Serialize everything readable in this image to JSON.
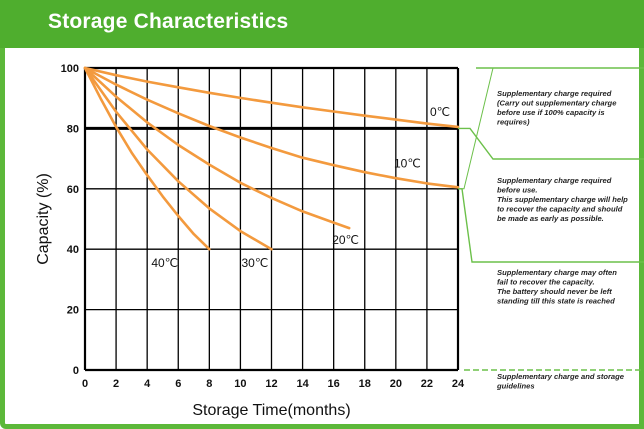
{
  "header": {
    "title": "Storage Characteristics"
  },
  "colors": {
    "header_bg": "#4fae2e",
    "curve": "#f39a3e",
    "note_line": "#6cc04a",
    "grid": "#000000"
  },
  "chart_data": {
    "type": "line",
    "title": "Storage Characteristics",
    "xlabel": "Storage Time(months)",
    "ylabel": "Capacity  (%)",
    "xlim": [
      0,
      24
    ],
    "ylim": [
      0,
      100
    ],
    "xticks": [
      "0",
      "2",
      "4",
      "6",
      "8",
      "10",
      "12",
      "14",
      "16",
      "18",
      "20",
      "22",
      "24"
    ],
    "yticks": [
      "0",
      "20",
      "40",
      "60",
      "80",
      "100"
    ],
    "grid": true,
    "series": [
      {
        "name": "0℃",
        "x": [
          0,
          2,
          4,
          6,
          8,
          10,
          12,
          14,
          16,
          18,
          20,
          22,
          24
        ],
        "values": [
          100,
          97.6,
          95.5,
          93.6,
          91.8,
          90.1,
          88.5,
          87,
          85.6,
          84.2,
          82.9,
          81.6,
          80.5
        ]
      },
      {
        "name": "10℃",
        "x": [
          0,
          2,
          4,
          6,
          8,
          10,
          12,
          14,
          16,
          18,
          20,
          22,
          24
        ],
        "values": [
          100,
          94.5,
          89.5,
          85,
          80.8,
          77,
          73.5,
          70.3,
          67.8,
          65.5,
          63.5,
          61.8,
          60.5
        ]
      },
      {
        "name": "20℃",
        "x": [
          0,
          2,
          4,
          6,
          8,
          10,
          12,
          14,
          16,
          17
        ],
        "values": [
          100,
          90.5,
          82,
          74.5,
          68,
          62,
          57,
          52.5,
          48.8,
          47
        ]
      },
      {
        "name": "30℃",
        "x": [
          0,
          2,
          4,
          6,
          8,
          10,
          12
        ],
        "values": [
          100,
          85.5,
          73,
          62.5,
          53.5,
          46,
          40
        ]
      },
      {
        "name": "40℃",
        "x": [
          0,
          1,
          2,
          3,
          4,
          5,
          6,
          7,
          8
        ],
        "values": [
          100,
          90,
          80.5,
          72,
          64.5,
          57.5,
          51,
          45,
          40
        ]
      }
    ],
    "annotations": [
      {
        "text": "Supplementary charge required (Carry out supplementary charge before use if 100% capacity is requires)",
        "range": [
          80,
          100
        ]
      },
      {
        "text": "Supplementary charge required before use. This supplementary charge will help to recover the capacity and should be made  as early as possible.",
        "range": [
          60,
          80
        ]
      },
      {
        "text": "Supplementary charge may often fail to recover the capacity. The battery should never be left standing till this state is reached",
        "range": [
          0,
          60
        ]
      },
      {
        "text": "Supplementary charge and storage guidelines",
        "range": []
      }
    ]
  }
}
